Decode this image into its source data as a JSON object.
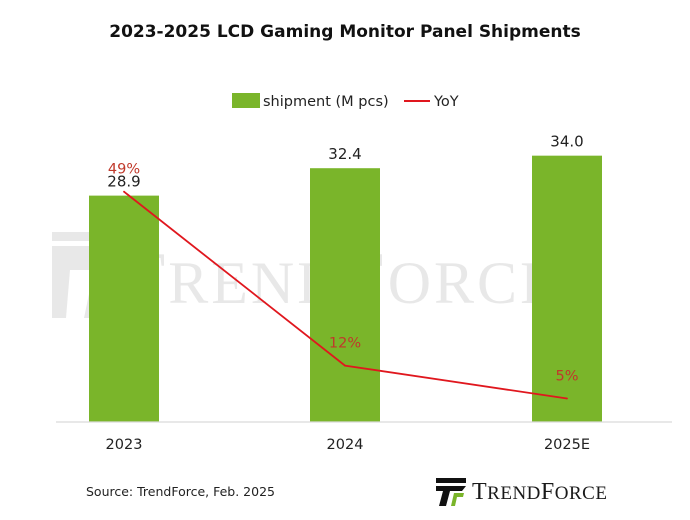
{
  "title": "2023-2025 LCD Gaming  Monitor  Panel Shipments",
  "source": "Source: TrendForce, Feb. 2025",
  "watermark": "TrendForce",
  "logo_text": "TrendForce",
  "colors": {
    "bar": "#7ab52a",
    "line": "#e0171e",
    "yoy_label": "#c0392b",
    "axis": "#d9d9d9"
  },
  "chart_data": {
    "type": "bar",
    "title": "2023-2025 LCD Gaming  Monitor  Panel Shipments",
    "categories": [
      "2023",
      "2024",
      "2025E"
    ],
    "legend_position": "top",
    "grid": false,
    "series": [
      {
        "name": "shipment (M pcs)",
        "type": "bar",
        "values": [
          28.9,
          32.4,
          34.0
        ],
        "labels": [
          "28.9",
          "32.4",
          "34.0"
        ],
        "ylim": [
          0,
          36
        ]
      },
      {
        "name": "YoY",
        "type": "line",
        "values": [
          49,
          12,
          5
        ],
        "labels": [
          "49%",
          "12%",
          "5%"
        ],
        "ylim": [
          0,
          60
        ]
      }
    ]
  }
}
